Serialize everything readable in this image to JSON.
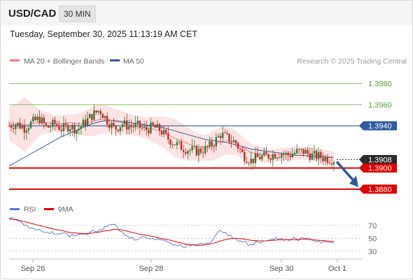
{
  "header": {
    "symbol": "USD/CAD",
    "timeframe": "30 MIN",
    "datetime": "Tuesday, September 30, 2025 11:13:19 AM CET"
  },
  "legend": {
    "ma20_bb": "MA 20 + Bollinger Bands",
    "ma50": "MA 50",
    "credit": "Research © 2025 Trading Central"
  },
  "rsi_legend": {
    "rsi": "RSI",
    "ma": "9MA"
  },
  "colors": {
    "ma20": "#f08080",
    "ma50": "#2f5a9e",
    "bb_fill": "#fbe3e3",
    "resistance": "#7dc35b",
    "support": "#e00000",
    "pivot": "#2f5a9e",
    "candle_up": "#2e7d32",
    "candle_down": "#c62828",
    "rsi": "#5577cc",
    "rsi_ma": "#e00000",
    "arrow": "#2f5a9e"
  },
  "chart_data": [
    {
      "type": "candlestick",
      "title": "USD/CAD",
      "ylim": [
        1.3872,
        1.3995
      ],
      "x_labels": [
        "Sep 26",
        "Sep 28",
        "Sep 30",
        "Oct 1"
      ],
      "levels": [
        {
          "value": 1.398,
          "label": "1.3980",
          "kind": "resistance"
        },
        {
          "value": 1.396,
          "label": "1.3960",
          "kind": "resistance"
        },
        {
          "value": 1.394,
          "label": "1.3940",
          "kind": "pivot"
        },
        {
          "value": 1.3908,
          "label": "1.3908",
          "kind": "last"
        },
        {
          "value": 1.39,
          "label": "1.3900",
          "kind": "support"
        },
        {
          "value": 1.388,
          "label": "1.3880",
          "kind": "support"
        }
      ],
      "close_path": [
        1.394,
        1.3942,
        1.3938,
        1.3943,
        1.3947,
        1.3938,
        1.3942,
        1.3937,
        1.394,
        1.3936,
        1.3943,
        1.395,
        1.3955,
        1.3945,
        1.3937,
        1.3942,
        1.3939,
        1.394,
        1.3936,
        1.3939,
        1.3936,
        1.3928,
        1.3923,
        1.3919,
        1.3917,
        1.3916,
        1.3918,
        1.3923,
        1.3932,
        1.3928,
        1.3924,
        1.3912,
        1.3907,
        1.391,
        1.3911,
        1.3913,
        1.3914,
        1.3912,
        1.3915,
        1.3916,
        1.3912,
        1.3911,
        1.3909,
        1.3908
      ],
      "ma20_path": [
        1.3942,
        1.3941,
        1.3941,
        1.3942,
        1.3943,
        1.3943,
        1.3942,
        1.3942,
        1.3943,
        1.3942,
        1.3942,
        1.3944,
        1.3946,
        1.3946,
        1.3944,
        1.3943,
        1.3941,
        1.394,
        1.3938,
        1.3937,
        1.3935,
        1.3932,
        1.3928,
        1.3925,
        1.3922,
        1.392,
        1.3919,
        1.3921,
        1.3925,
        1.3926,
        1.3924,
        1.3919,
        1.3915,
        1.3913,
        1.3912,
        1.3912,
        1.3913,
        1.3913,
        1.3914,
        1.3914,
        1.3913,
        1.3912,
        1.3911,
        1.391
      ],
      "ma50_path": [
        1.3902,
        1.3906,
        1.391,
        1.3914,
        1.3918,
        1.3922,
        1.3926,
        1.393,
        1.3933,
        1.3936,
        1.3939,
        1.3942,
        1.3944,
        1.3945,
        1.3945,
        1.3944,
        1.3943,
        1.3942,
        1.3941,
        1.394,
        1.3939,
        1.3937,
        1.3935,
        1.3933,
        1.3931,
        1.3929,
        1.3927,
        1.3926,
        1.3925,
        1.3924,
        1.3922,
        1.392,
        1.3918,
        1.3917,
        1.3916,
        1.3915,
        1.3914,
        1.3913,
        1.3912,
        1.3912,
        1.3911,
        1.3911,
        1.391,
        1.391
      ],
      "bb_width": [
        0.0016,
        0.002,
        0.0026,
        0.002,
        0.0012,
        0.001,
        0.0008,
        0.0008,
        0.0008,
        0.0009,
        0.0012,
        0.0014,
        0.0014,
        0.0013,
        0.0012,
        0.0011,
        0.001,
        0.001,
        0.001,
        0.0012,
        0.0014,
        0.0016,
        0.0018,
        0.0017,
        0.0015,
        0.0013,
        0.0012,
        0.0014,
        0.0014,
        0.0013,
        0.0012,
        0.001,
        0.0008,
        0.0007,
        0.0007,
        0.0006,
        0.0006,
        0.0006,
        0.0006,
        0.0006,
        0.0006,
        0.0006,
        0.0006,
        0.0006
      ],
      "projection": {
        "from": 1.3906,
        "to": 1.3882
      },
      "legend": [
        "MA 20 + Bollinger Bands",
        "MA 50"
      ]
    },
    {
      "type": "line",
      "title": "RSI",
      "ylim": [
        20,
        85
      ],
      "y_ticks": [
        "70",
        "50",
        "30"
      ],
      "series": [
        {
          "name": "RSI",
          "values": [
            80,
            78,
            70,
            66,
            64,
            60,
            56,
            58,
            52,
            55,
            57,
            62,
            64,
            68,
            72,
            60,
            50,
            48,
            52,
            50,
            48,
            44,
            40,
            36,
            38,
            40,
            42,
            48,
            62,
            54,
            50,
            44,
            40,
            44,
            46,
            48,
            50,
            47,
            49,
            50,
            48,
            46,
            44,
            43
          ]
        },
        {
          "name": "9MA",
          "values": [
            80,
            79,
            76,
            73,
            70,
            67,
            64,
            62,
            59,
            58,
            57,
            58,
            60,
            62,
            64,
            63,
            60,
            57,
            55,
            53,
            50,
            48,
            45,
            42,
            40,
            39,
            40,
            42,
            46,
            49,
            50,
            49,
            47,
            46,
            46,
            47,
            48,
            48,
            48,
            49,
            48,
            47,
            46,
            45
          ]
        }
      ],
      "legend": [
        "RSI",
        "9MA"
      ]
    }
  ]
}
